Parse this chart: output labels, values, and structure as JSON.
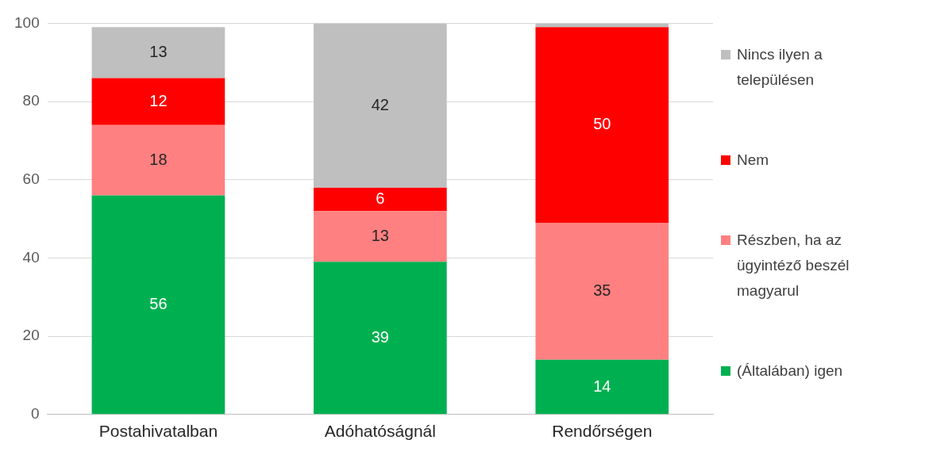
{
  "chart_data": {
    "type": "bar",
    "stacked": true,
    "categories": [
      "Postahivatalban",
      "Adóhatóságnál",
      "Rendőrségen"
    ],
    "series": [
      {
        "name": "(Általában) igen",
        "color": "#00b050",
        "values": [
          56,
          39,
          14
        ],
        "value_labels": [
          "56",
          "39",
          "14"
        ]
      },
      {
        "name": "Részben, ha az ügyintéző beszél magyarul",
        "color": "#ff8080",
        "values": [
          18,
          13,
          35
        ],
        "value_labels": [
          "18",
          "13",
          "35"
        ]
      },
      {
        "name": "Nem",
        "color": "#ff0000",
        "values": [
          12,
          6,
          50
        ],
        "value_labels": [
          "12",
          "6",
          "50"
        ]
      },
      {
        "name": "Nincs ilyen a településen",
        "color": "#bfbfbf",
        "values": [
          13,
          42,
          1
        ],
        "value_labels": [
          "13",
          "42",
          null
        ]
      }
    ],
    "ylim": [
      0,
      100
    ],
    "yticks": [
      0,
      20,
      40,
      60,
      80,
      100
    ],
    "grid": "y",
    "legend": "right"
  }
}
